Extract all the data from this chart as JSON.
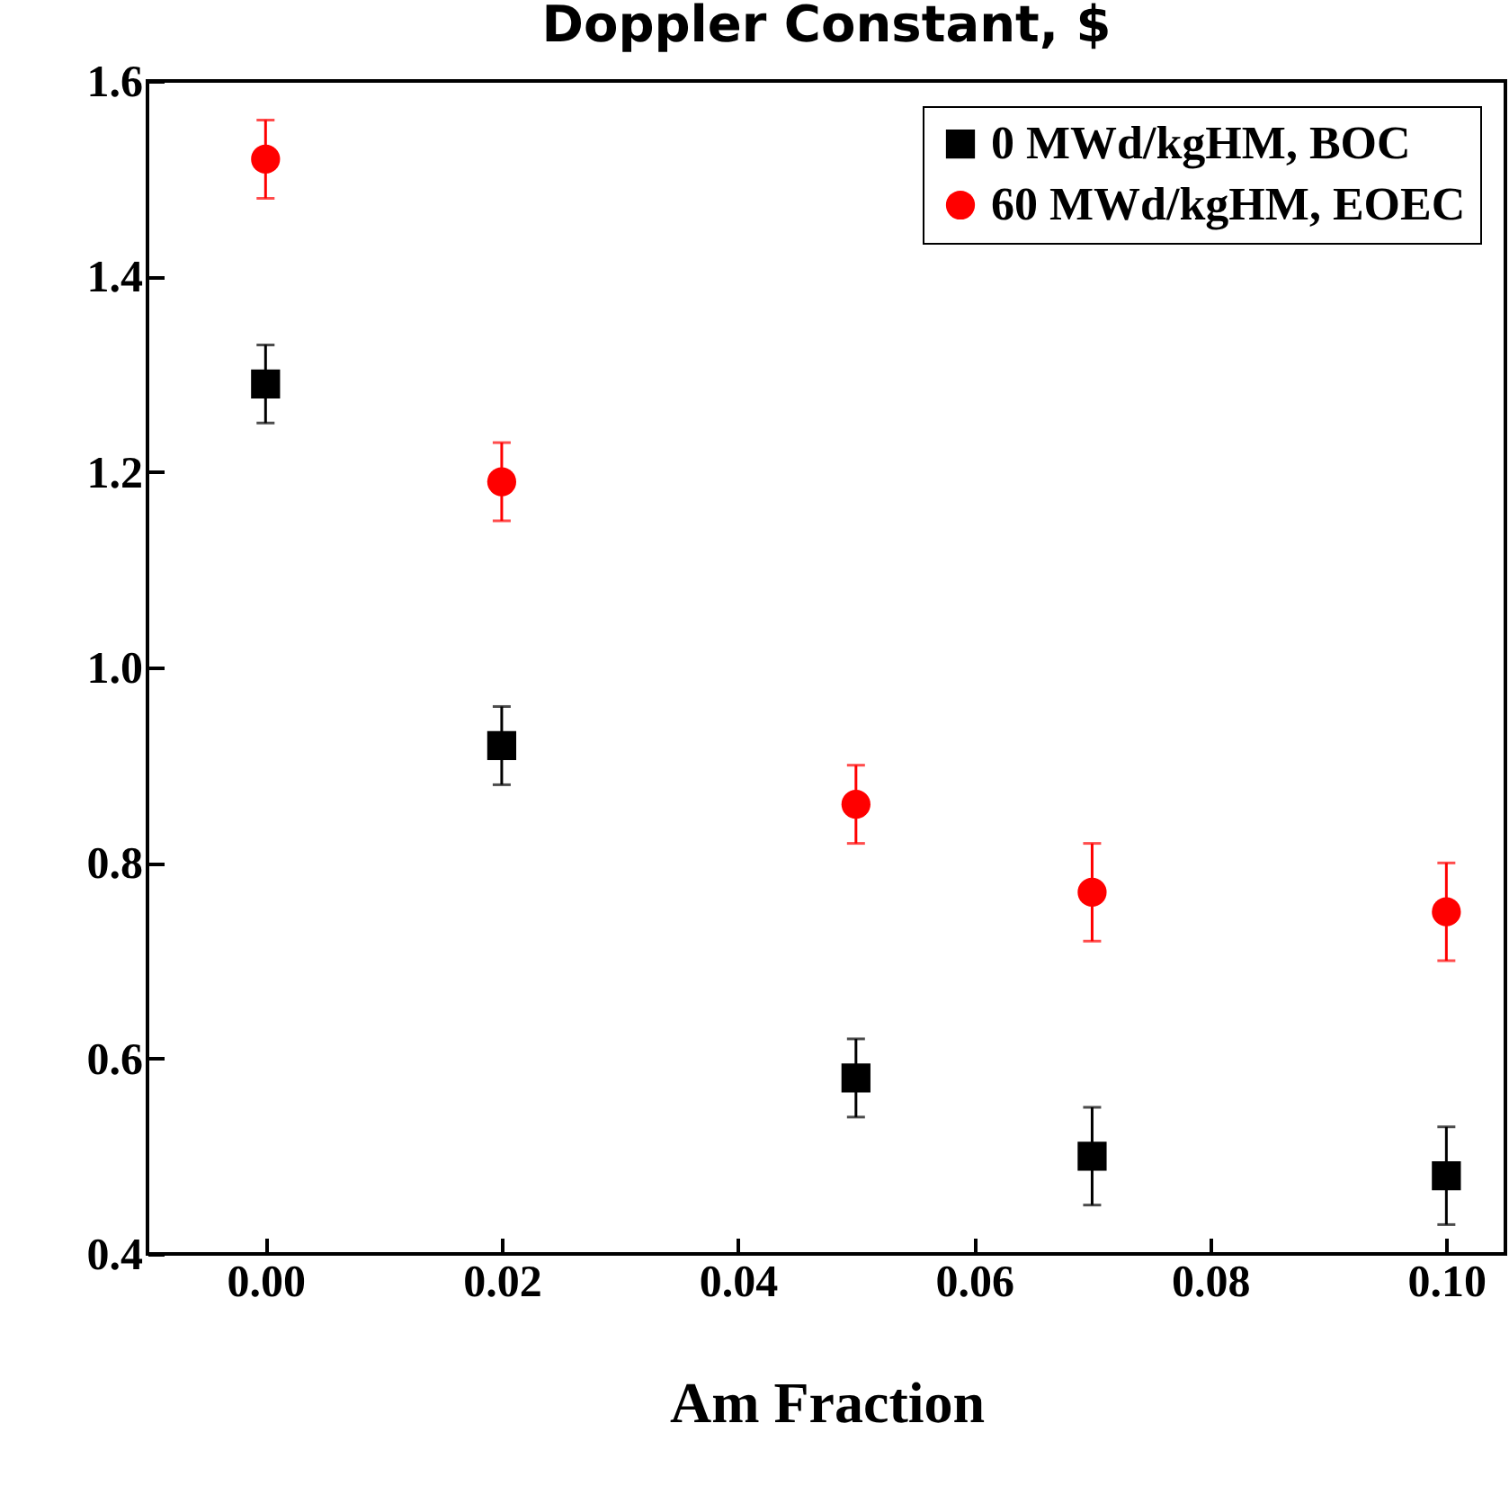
{
  "chart_data": {
    "type": "scatter",
    "title": "Doppler Constant, $",
    "xlabel": "Am Fraction",
    "x": [
      0.0,
      0.02,
      0.05,
      0.07,
      0.1
    ],
    "series": [
      {
        "name": "0 MWd/kgHM, BOC",
        "color": "#000000",
        "marker": "square",
        "values": [
          1.29,
          0.92,
          0.58,
          0.5,
          0.48
        ],
        "errors": [
          0.04,
          0.04,
          0.04,
          0.05,
          0.05
        ]
      },
      {
        "name": "60 MWd/kgHM, EOEC",
        "color": "#ff0000",
        "marker": "circle",
        "values": [
          1.52,
          1.19,
          0.86,
          0.77,
          0.75
        ],
        "errors": [
          0.04,
          0.04,
          0.04,
          0.05,
          0.05
        ]
      }
    ],
    "xlim": [
      -0.01,
      0.105
    ],
    "xticks": [
      {
        "value": 0,
        "label": "0.00"
      },
      {
        "value": 0.02,
        "label": "0.02"
      },
      {
        "value": 0.04,
        "label": "0.04"
      },
      {
        "value": 0.06,
        "label": "0.06"
      },
      {
        "value": 0.08,
        "label": "0.08"
      },
      {
        "value": 0.1,
        "label": "0.10"
      }
    ],
    "ylim": [
      0.4,
      1.6
    ],
    "yticks": [
      {
        "value": 0.4,
        "label": "0.4"
      },
      {
        "value": 0.6,
        "label": "0.6"
      },
      {
        "value": 0.8,
        "label": "0.8"
      },
      {
        "value": 1.0,
        "label": "1.0"
      },
      {
        "value": 1.2,
        "label": "1.2"
      },
      {
        "value": 1.4,
        "label": "1.4"
      },
      {
        "value": 1.6,
        "label": "1.6"
      }
    ],
    "grid": false,
    "legend": "top right"
  }
}
